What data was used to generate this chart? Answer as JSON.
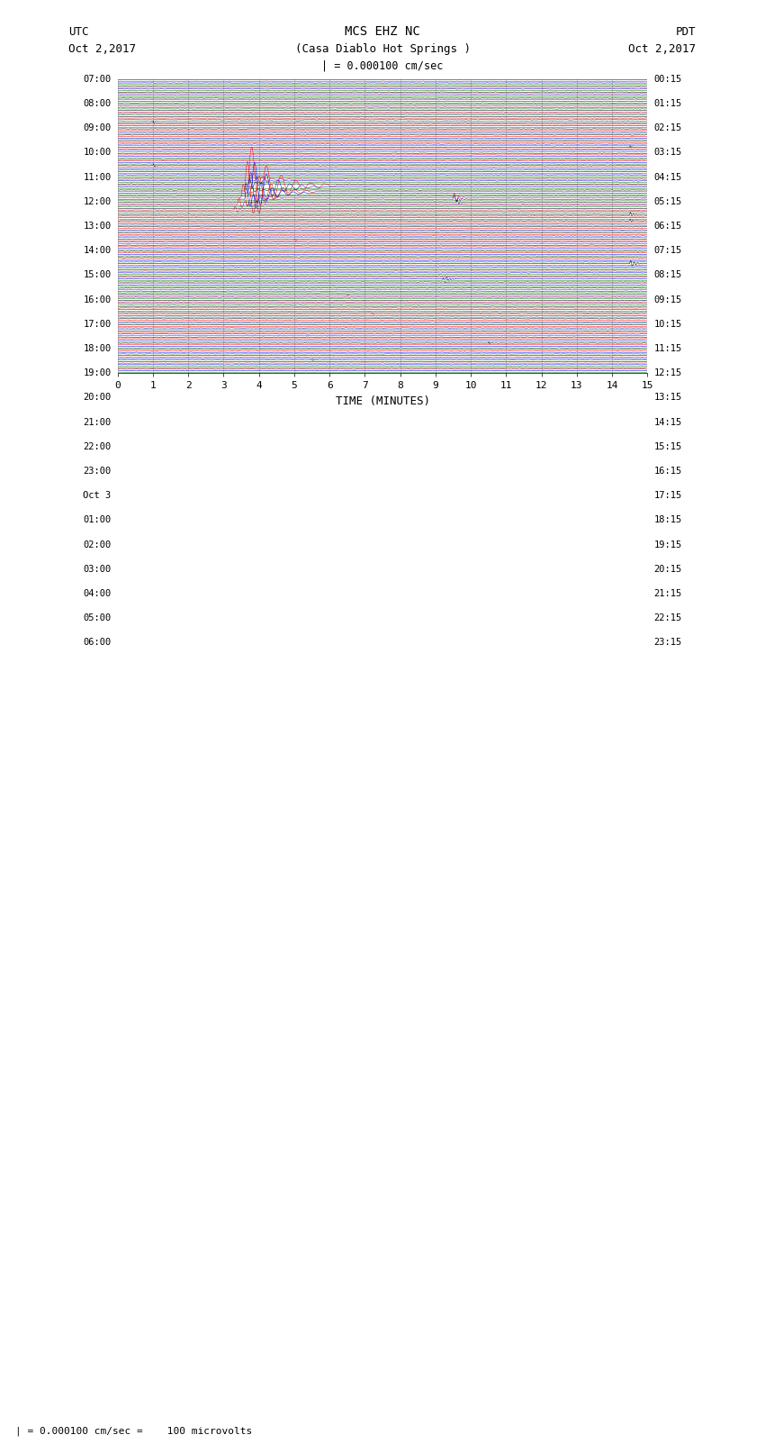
{
  "title_line1": "MCS EHZ NC",
  "title_line2": "(Casa Diablo Hot Springs )",
  "utc_label": "UTC",
  "utc_date": "Oct 2,2017",
  "pdt_label": "PDT",
  "pdt_date": "Oct 2,2017",
  "scale_text": "| = 0.000100 cm/sec",
  "bottom_label": "| = 0.000100 cm/sec =    100 microvolts",
  "xlabel": "TIME (MINUTES)",
  "xticks": [
    0,
    1,
    2,
    3,
    4,
    5,
    6,
    7,
    8,
    9,
    10,
    11,
    12,
    13,
    14,
    15
  ],
  "colors": [
    "black",
    "red",
    "blue",
    "green"
  ],
  "n_groups": 48,
  "fig_width": 8.5,
  "fig_height": 16.13,
  "bg_color": "white",
  "line_width": 0.35,
  "left_labels": [
    "07:00",
    "",
    "",
    "",
    "08:00",
    "",
    "",
    "",
    "09:00",
    "",
    "",
    "",
    "10:00",
    "",
    "",
    "",
    "11:00",
    "",
    "",
    "",
    "12:00",
    "",
    "",
    "",
    "13:00",
    "",
    "",
    "",
    "14:00",
    "",
    "",
    "",
    "15:00",
    "",
    "",
    "",
    "16:00",
    "",
    "",
    "",
    "17:00",
    "",
    "",
    "",
    "18:00",
    "",
    "",
    "",
    "19:00",
    "",
    "",
    "",
    "20:00",
    "",
    "",
    "",
    "21:00",
    "",
    "",
    "",
    "22:00",
    "",
    "",
    "",
    "23:00",
    "",
    "",
    "",
    "Oct 3",
    "",
    "",
    "",
    "01:00",
    "",
    "",
    "",
    "02:00",
    "",
    "",
    "",
    "03:00",
    "",
    "",
    "",
    "04:00",
    "",
    "",
    "",
    "05:00",
    "",
    "",
    "",
    "06:00",
    "",
    "",
    ""
  ],
  "right_labels": [
    "00:15",
    "",
    "",
    "",
    "01:15",
    "",
    "",
    "",
    "02:15",
    "",
    "",
    "",
    "03:15",
    "",
    "",
    "",
    "04:15",
    "",
    "",
    "",
    "05:15",
    "",
    "",
    "",
    "06:15",
    "",
    "",
    "",
    "07:15",
    "",
    "",
    "",
    "08:15",
    "",
    "",
    "",
    "09:15",
    "",
    "",
    "",
    "10:15",
    "",
    "",
    "",
    "11:15",
    "",
    "",
    "",
    "12:15",
    "",
    "",
    "",
    "13:15",
    "",
    "",
    "",
    "14:15",
    "",
    "",
    "",
    "15:15",
    "",
    "",
    "",
    "16:15",
    "",
    "",
    "",
    "17:15",
    "",
    "",
    "",
    "18:15",
    "",
    "",
    "",
    "19:15",
    "",
    "",
    "",
    "20:15",
    "",
    "",
    "",
    "21:15",
    "",
    "",
    "",
    "22:15",
    "",
    "",
    "",
    "23:15",
    "",
    "",
    ""
  ]
}
